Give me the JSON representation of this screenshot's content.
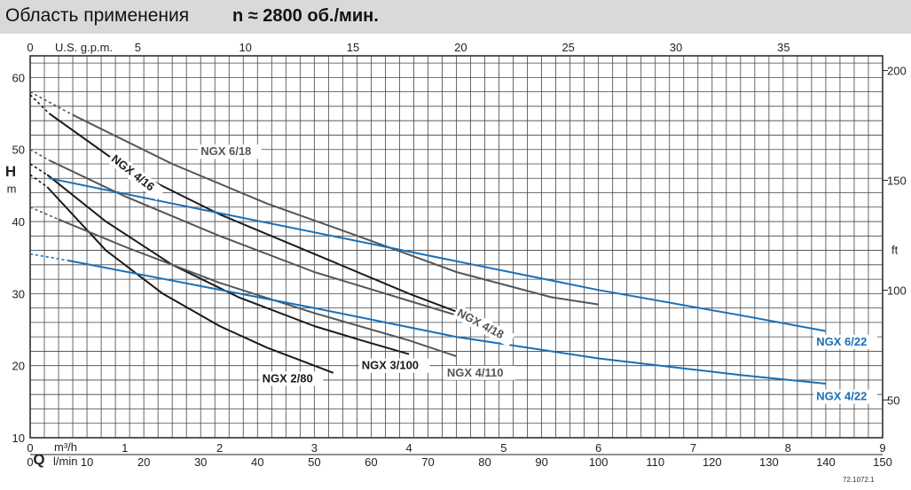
{
  "header": {
    "title": "Область применения",
    "rpm": "n ≈ 2800 об./мин."
  },
  "footer": {
    "code": "72.1072.1"
  },
  "colors": {
    "black": "#1a1a1a",
    "grey": "#555555",
    "blue": "#1a6fb5"
  },
  "chart_data": {
    "type": "line",
    "x_m3h": {
      "range": [
        0,
        9
      ],
      "ticks": [
        0,
        1,
        2,
        3,
        4,
        5,
        6,
        7,
        8,
        9
      ],
      "label": "m³/h"
    },
    "x_lmin": {
      "range": [
        0,
        150
      ],
      "ticks": [
        0,
        10,
        20,
        30,
        40,
        50,
        60,
        70,
        80,
        90,
        100,
        110,
        120,
        130,
        140,
        150
      ],
      "label": "l/min"
    },
    "x_usgpm": {
      "range": [
        0,
        39.6
      ],
      "ticks": [
        0,
        5,
        10,
        15,
        20,
        25,
        30,
        35
      ],
      "label": "U.S. g.p.m."
    },
    "y_m": {
      "range": [
        10,
        63
      ],
      "ticks": [
        10,
        20,
        30,
        40,
        50,
        60
      ],
      "label": "H",
      "unit": "m"
    },
    "y_ft": {
      "ticks": [
        50,
        100,
        150,
        200
      ],
      "unit": "ft"
    },
    "q_symbol": "Q",
    "series": [
      {
        "name": "NGX 2/80",
        "color": "black",
        "dashed": [
          [
            0,
            46.5
          ],
          [
            0.18,
            44.8
          ]
        ],
        "solid": [
          [
            0.18,
            44.8
          ],
          [
            0.8,
            36
          ],
          [
            1.4,
            30
          ],
          [
            2.0,
            25.5
          ],
          [
            2.5,
            22.5
          ],
          [
            2.9,
            20.5
          ],
          [
            3.2,
            19
          ]
        ],
        "label_x": 2.45,
        "label_y": 17.7,
        "label_color": "black",
        "label_rot": 0
      },
      {
        "name": "NGX 3/100",
        "color": "black",
        "dashed": [
          [
            0,
            48
          ],
          [
            0.18,
            46.5
          ]
        ],
        "solid": [
          [
            0.18,
            46.5
          ],
          [
            0.8,
            40
          ],
          [
            1.5,
            34
          ],
          [
            2.2,
            29.5
          ],
          [
            3.0,
            25.5
          ],
          [
            3.5,
            23.5
          ],
          [
            4.0,
            21.6
          ]
        ],
        "label_x": 3.5,
        "label_y": 19.5,
        "label_color": "black",
        "label_rot": 0
      },
      {
        "name": "NGX 4/110",
        "color": "grey",
        "dashed": [
          [
            0,
            42
          ],
          [
            0.3,
            40.3
          ]
        ],
        "solid": [
          [
            0.3,
            40.3
          ],
          [
            1.0,
            36.5
          ],
          [
            2.0,
            31.5
          ],
          [
            3.0,
            27.3
          ],
          [
            4.0,
            23.5
          ],
          [
            4.5,
            21.3
          ]
        ],
        "label_x": 4.4,
        "label_y": 18.5,
        "label_color": "grey",
        "label_rot": 0
      },
      {
        "name": "NGX 4/16",
        "color": "black",
        "dashed": [
          [
            0,
            57.6
          ],
          [
            0.2,
            55
          ]
        ],
        "solid": [
          [
            0.2,
            55
          ],
          [
            1.0,
            47.5
          ],
          [
            2.0,
            41
          ],
          [
            3.0,
            35.5
          ],
          [
            4.0,
            30
          ],
          [
            4.5,
            27.5
          ],
          [
            4.5,
            27.5
          ]
        ],
        "extend": [
          [
            4.5,
            27.5
          ],
          [
            4.5,
            27.5
          ]
        ],
        "label_x": 0.85,
        "label_y": 48.5,
        "label_color": "black",
        "label_rot": 38
      },
      {
        "name": "NGX 4/18",
        "color": "grey",
        "dashed": [
          [
            0,
            50
          ],
          [
            0.2,
            48.5
          ]
        ],
        "solid": [
          [
            0.2,
            48.5
          ],
          [
            1.0,
            43.5
          ],
          [
            2.0,
            38
          ],
          [
            3.0,
            33
          ],
          [
            4.0,
            29
          ],
          [
            5.0,
            25
          ]
        ],
        "label_x": 4.5,
        "label_y": 27.0,
        "label_color": "grey",
        "label_rot": 28
      },
      {
        "name": "NGX 6/18",
        "color": "grey",
        "dashed": [
          [
            0,
            58
          ],
          [
            0.45,
            54.8
          ]
        ],
        "solid": [
          [
            0.45,
            54.8
          ],
          [
            1.5,
            48
          ],
          [
            2.5,
            42.5
          ],
          [
            3.5,
            37.8
          ],
          [
            4.5,
            33
          ],
          [
            5.5,
            29.5
          ],
          [
            6.0,
            28.5
          ]
        ],
        "label_x": 1.8,
        "label_y": 49.2,
        "label_color": "grey",
        "label_rot": 0
      },
      {
        "name": "NGX 6/22",
        "color": "blue",
        "dashed": [],
        "solid": [
          [
            0.2,
            46
          ],
          [
            1.5,
            42.5
          ],
          [
            3.0,
            38.5
          ],
          [
            4.5,
            34.5
          ],
          [
            6.0,
            30.5
          ],
          [
            7.5,
            27
          ],
          [
            8.4,
            24.8
          ]
        ],
        "label_x": 8.3,
        "label_y": 22.8,
        "label_color": "blue",
        "label_rot": 0
      },
      {
        "name": "NGX 4/22",
        "color": "blue",
        "dashed": [
          [
            0,
            35.5
          ],
          [
            0.4,
            34.6
          ]
        ],
        "solid": [
          [
            0.4,
            34.6
          ],
          [
            1.5,
            31.8
          ],
          [
            3.0,
            28
          ],
          [
            4.5,
            24
          ],
          [
            6.0,
            21
          ],
          [
            7.5,
            18.7
          ],
          [
            8.4,
            17.5
          ]
        ],
        "label_x": 8.3,
        "label_y": 15.2,
        "label_color": "blue",
        "label_rot": 0
      }
    ]
  }
}
